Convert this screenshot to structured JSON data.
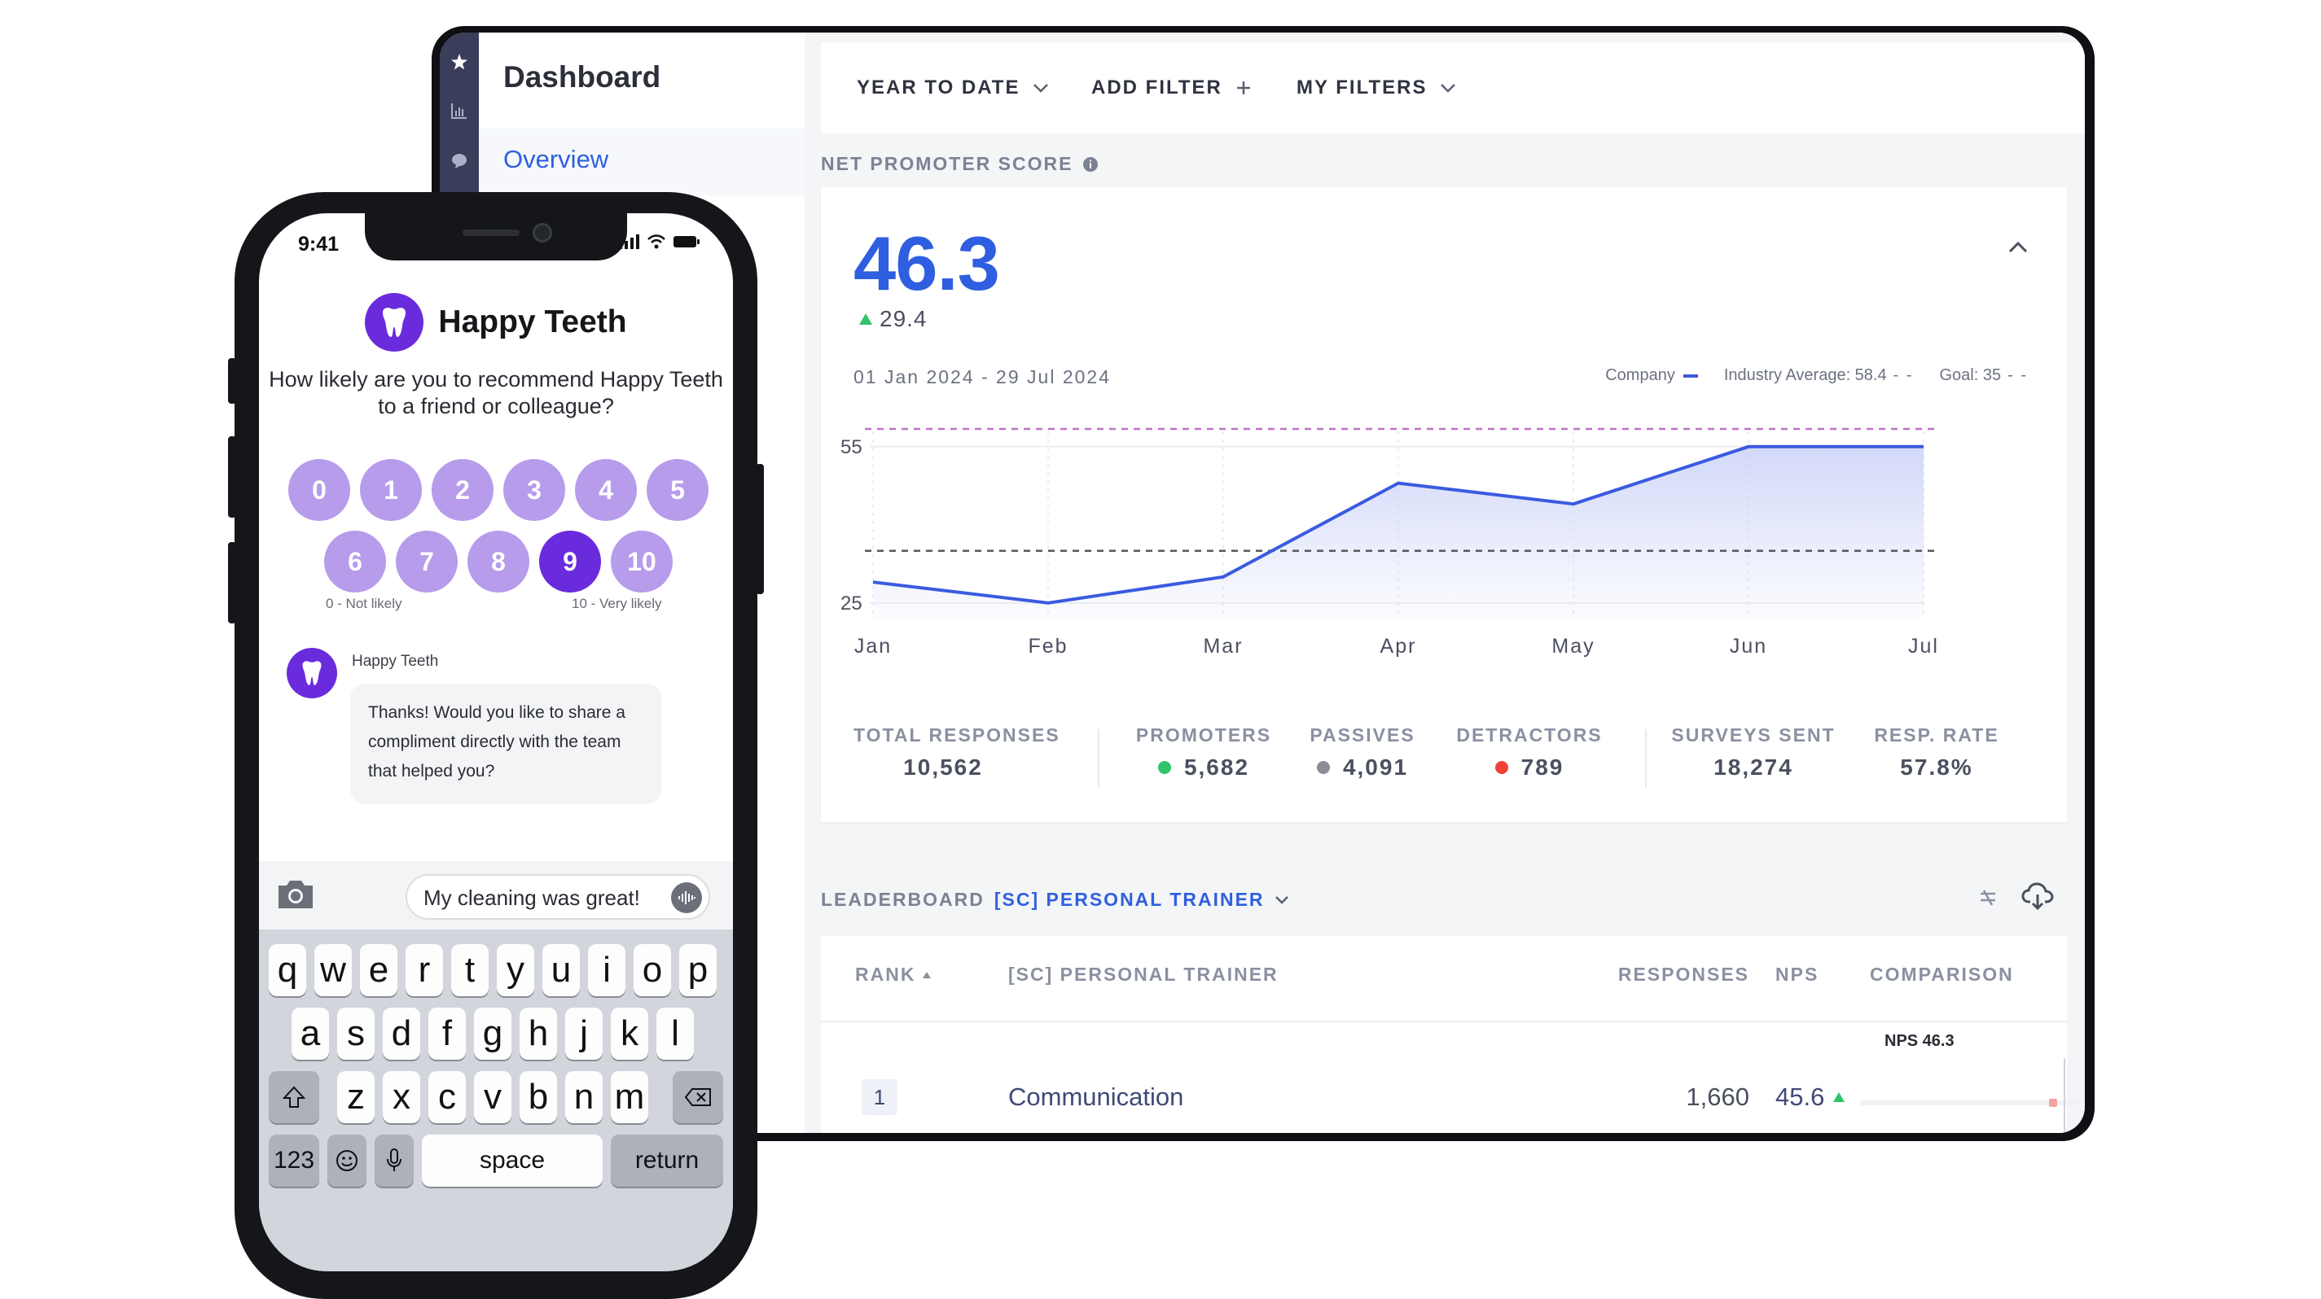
{
  "dashboard": {
    "title": "Dashboard",
    "nav_overview": "Overview",
    "filters": {
      "period": "YEAR TO DATE",
      "add_filter": "ADD FILTER",
      "my_filters": "MY FILTERS"
    },
    "nps": {
      "section_label": "NET PROMOTER SCORE",
      "score": "46.3",
      "delta": "29.4",
      "date_range": "01 Jan 2024 - 29 Jul 2024",
      "legend": {
        "company": "Company",
        "industry": "Industry Average: 58.4",
        "goal": "Goal: 35"
      }
    },
    "stats": [
      {
        "label": "TOTAL RESPONSES",
        "value": "10,562"
      },
      {
        "label": "PROMOTERS",
        "value": "5,682"
      },
      {
        "label": "PASSIVES",
        "value": "4,091"
      },
      {
        "label": "DETRACTORS",
        "value": "789"
      },
      {
        "label": "SURVEYS SENT",
        "value": "18,274"
      },
      {
        "label": "RESP. RATE",
        "value": "57.8%"
      }
    ],
    "leaderboard": {
      "label": "LEADERBOARD",
      "group": "[SC] PERSONAL TRAINER",
      "columns": {
        "rank": "RANK",
        "name": "[SC] PERSONAL TRAINER",
        "responses": "RESPONSES",
        "nps": "NPS",
        "comparison": "COMPARISON"
      },
      "nps_marker": "NPS 46.3",
      "rows": [
        {
          "rank": "1",
          "name": "Communication",
          "responses": "1,660",
          "nps": "45.6"
        }
      ]
    }
  },
  "chart_data": {
    "type": "area",
    "title": "Net Promoter Score",
    "categories": [
      "Jan",
      "Feb",
      "Mar",
      "Apr",
      "May",
      "Jun",
      "Jul"
    ],
    "series": [
      {
        "name": "Company",
        "values": [
          29,
          25,
          30,
          48,
          44,
          55,
          55
        ]
      }
    ],
    "reference_lines": [
      {
        "name": "Industry Average",
        "value": 58.4
      },
      {
        "name": "Goal",
        "value": 35
      }
    ],
    "y_ticks": [
      25,
      55
    ],
    "ylim": [
      25,
      58.4
    ],
    "colors": {
      "company": "#3a5be0",
      "industry": "#c070c8",
      "goal": "#55585e"
    }
  },
  "phone": {
    "time": "9:41",
    "brand": "Happy Teeth",
    "question": "How likely are you to recommend Happy Teeth to a friend or colleague?",
    "scale": [
      "0",
      "1",
      "2",
      "3",
      "4",
      "5",
      "6",
      "7",
      "8",
      "9",
      "10"
    ],
    "selected": "9",
    "low_label": "0 - Not likely",
    "high_label": "10 - Very likely",
    "bot_name": "Happy Teeth",
    "bot_message": "Thanks! Would you like to share a compliment directly with the team that helped you?",
    "input_text": "My cleaning was great!",
    "keyboard": {
      "row1": [
        "q",
        "w",
        "e",
        "r",
        "t",
        "y",
        "u",
        "i",
        "o",
        "p"
      ],
      "row2": [
        "a",
        "s",
        "d",
        "f",
        "g",
        "h",
        "j",
        "k",
        "l"
      ],
      "row3": [
        "z",
        "x",
        "c",
        "v",
        "b",
        "n",
        "m"
      ],
      "numbers": "123",
      "space": "space",
      "return": "return"
    }
  }
}
